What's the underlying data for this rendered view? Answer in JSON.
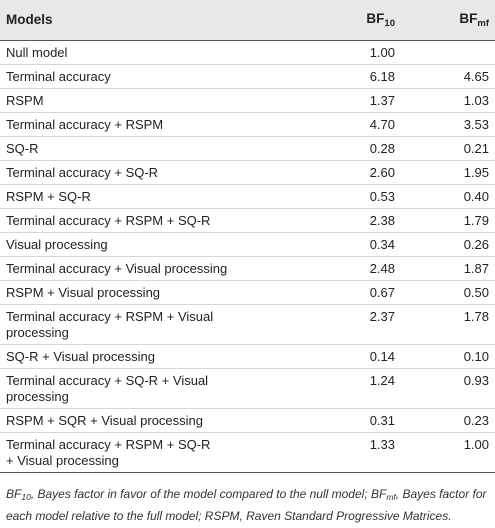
{
  "table": {
    "headers": {
      "models": "Models",
      "bf10_base": "BF",
      "bf10_sub": "10",
      "bfmf_base": "BF",
      "bfmf_sub": "mf"
    },
    "rows": [
      {
        "model": "Null model",
        "bf10": "1.00",
        "bfmf": "",
        "lines": 1
      },
      {
        "model": "Terminal accuracy",
        "bf10": "6.18",
        "bfmf": "4.65",
        "lines": 1
      },
      {
        "model": "RSPM",
        "bf10": "1.37",
        "bfmf": "1.03",
        "lines": 1
      },
      {
        "model": "Terminal accuracy + RSPM",
        "bf10": "4.70",
        "bfmf": "3.53",
        "lines": 1
      },
      {
        "model": "SQ-R",
        "bf10": "0.28",
        "bfmf": "0.21",
        "lines": 1
      },
      {
        "model": "Terminal accuracy + SQ-R",
        "bf10": "2.60",
        "bfmf": "1.95",
        "lines": 1
      },
      {
        "model": "RSPM + SQ-R",
        "bf10": "0.53",
        "bfmf": "0.40",
        "lines": 1
      },
      {
        "model": "Terminal accuracy + RSPM + SQ-R",
        "bf10": "2.38",
        "bfmf": "1.79",
        "lines": 1
      },
      {
        "model": "Visual processing",
        "bf10": "0.34",
        "bfmf": "0.26",
        "lines": 1
      },
      {
        "model": "Terminal accuracy + Visual processing",
        "bf10": "2.48",
        "bfmf": "1.87",
        "lines": 1
      },
      {
        "model": "RSPM + Visual processing",
        "bf10": "0.67",
        "bfmf": "0.50",
        "lines": 1
      },
      {
        "model": "Terminal accuracy + RSPM + Visual\nprocessing",
        "bf10": "2.37",
        "bfmf": "1.78",
        "lines": 2
      },
      {
        "model": "SQ-R + Visual processing",
        "bf10": "0.14",
        "bfmf": "0.10",
        "lines": 1
      },
      {
        "model": "Terminal accuracy + SQ-R + Visual\nprocessing",
        "bf10": "1.24",
        "bfmf": "0.93",
        "lines": 2
      },
      {
        "model": "RSPM + SQR + Visual processing",
        "bf10": "0.31",
        "bfmf": "0.23",
        "lines": 1
      },
      {
        "model": "Terminal accuracy + RSPM + SQ-R\n+ Visual processing",
        "bf10": "1.33",
        "bfmf": "1.00",
        "lines": 2
      }
    ]
  },
  "footnote": {
    "bf10_base": "BF",
    "bf10_sub": "10",
    "part1": ", Bayes factor in favor of the model compared to the null model; ",
    "bfmf_base": "BF",
    "bfmf_sub": "mf",
    "part2": ", Bayes factor for each model relative to the full model; RSPM, Raven Standard Progressive Matrices."
  }
}
